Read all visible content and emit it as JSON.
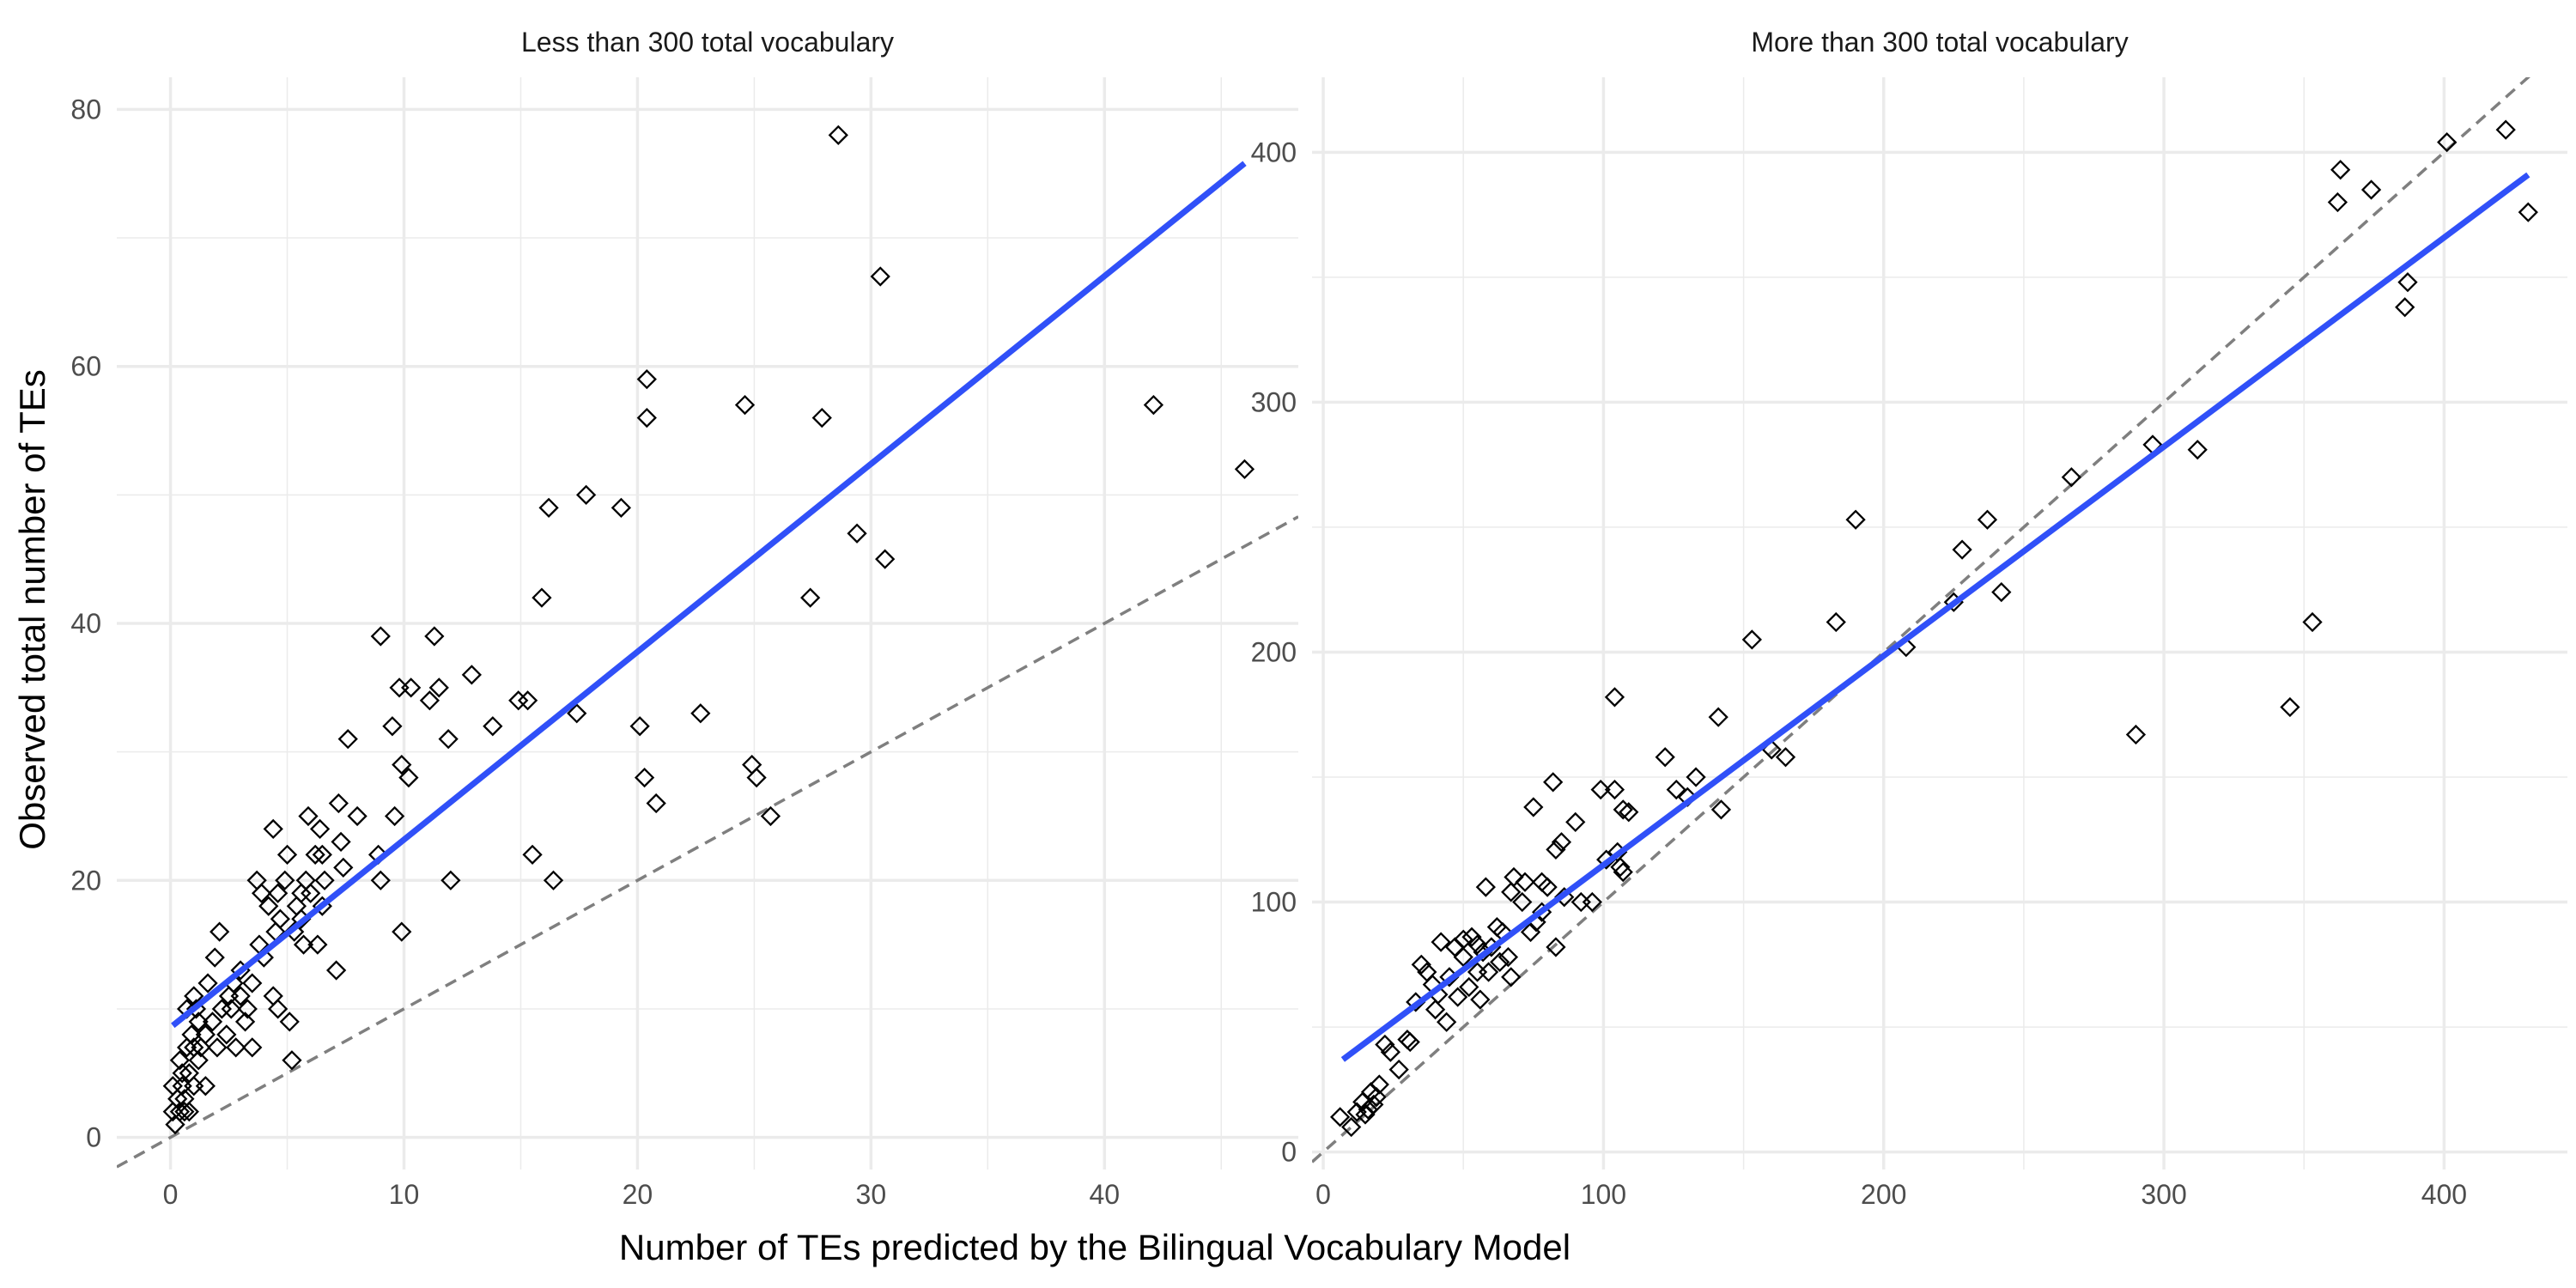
{
  "chart_data": {
    "type": "scatter",
    "xlabel": "Number of TEs predicted by the Bilingual Vocabulary Model",
    "ylabel": "Observed total number of TEs",
    "grid": true,
    "colors": {
      "points": "#000000",
      "fit_line": "#3050F8",
      "reference_line": "#7F7F7F",
      "grid": "#EBEBEB"
    },
    "panels": [
      {
        "title": "Less than 300 total vocabulary",
        "xlim": [
          -2.3,
          48.3
        ],
        "ylim": [
          -2.5,
          82.5
        ],
        "xticks": [
          0,
          10,
          20,
          30,
          40
        ],
        "yticks": [
          0,
          20,
          40,
          60,
          80
        ],
        "fit_line": {
          "x": [
            0.1,
            46
          ],
          "y": [
            8.7,
            75.8
          ]
        },
        "reference_line": {
          "x": [
            -2.3,
            48.3
          ],
          "y": [
            -2.3,
            48.3
          ]
        },
        "points": [
          [
            0.1,
            2
          ],
          [
            0.1,
            4
          ],
          [
            0.2,
            1
          ],
          [
            0.3,
            3
          ],
          [
            0.4,
            2
          ],
          [
            0.4,
            6
          ],
          [
            0.5,
            5
          ],
          [
            0.5,
            4
          ],
          [
            0.6,
            2
          ],
          [
            0.6,
            3
          ],
          [
            0.7,
            7
          ],
          [
            0.7,
            10
          ],
          [
            0.8,
            2
          ],
          [
            0.8,
            5
          ],
          [
            0.9,
            8
          ],
          [
            1,
            4
          ],
          [
            1,
            7
          ],
          [
            1,
            11
          ],
          [
            1.1,
            10
          ],
          [
            1.2,
            6
          ],
          [
            1.2,
            9
          ],
          [
            1.3,
            7
          ],
          [
            1.5,
            4
          ],
          [
            1.5,
            8
          ],
          [
            1.6,
            12
          ],
          [
            1.8,
            9
          ],
          [
            1.9,
            14
          ],
          [
            2,
            7
          ],
          [
            2.1,
            16
          ],
          [
            2.2,
            10
          ],
          [
            2.4,
            8
          ],
          [
            2.5,
            11
          ],
          [
            2.6,
            10
          ],
          [
            2.7,
            12
          ],
          [
            2.8,
            7
          ],
          [
            3,
            11
          ],
          [
            3,
            13
          ],
          [
            3.2,
            9
          ],
          [
            3.3,
            10
          ],
          [
            3.5,
            7
          ],
          [
            3.5,
            12
          ],
          [
            3.7,
            20
          ],
          [
            3.8,
            15
          ],
          [
            3.9,
            19
          ],
          [
            4,
            14
          ],
          [
            4.2,
            18
          ],
          [
            4.4,
            24
          ],
          [
            4.4,
            11
          ],
          [
            4.5,
            16
          ],
          [
            4.6,
            19
          ],
          [
            4.6,
            10
          ],
          [
            4.7,
            17
          ],
          [
            4.9,
            20
          ],
          [
            5,
            22
          ],
          [
            5.1,
            9
          ],
          [
            5.2,
            6
          ],
          [
            5.3,
            16
          ],
          [
            5.4,
            18
          ],
          [
            5.6,
            17
          ],
          [
            5.6,
            19
          ],
          [
            5.7,
            15
          ],
          [
            5.8,
            20
          ],
          [
            5.9,
            25
          ],
          [
            6,
            19
          ],
          [
            6.2,
            22
          ],
          [
            6.3,
            15
          ],
          [
            6.4,
            24
          ],
          [
            6.5,
            18
          ],
          [
            6.5,
            22
          ],
          [
            6.6,
            20
          ],
          [
            7.1,
            13
          ],
          [
            7.2,
            26
          ],
          [
            7.3,
            23
          ],
          [
            7.4,
            21
          ],
          [
            7.6,
            31
          ],
          [
            8,
            25
          ],
          [
            8.9,
            22
          ],
          [
            9,
            20
          ],
          [
            9,
            39
          ],
          [
            9.5,
            32
          ],
          [
            9.6,
            25
          ],
          [
            9.8,
            35
          ],
          [
            9.9,
            16
          ],
          [
            9.9,
            29
          ],
          [
            10.2,
            28
          ],
          [
            10.3,
            35
          ],
          [
            11.1,
            34
          ],
          [
            11.3,
            39
          ],
          [
            11.5,
            35
          ],
          [
            11.9,
            31
          ],
          [
            12,
            20
          ],
          [
            12.9,
            36
          ],
          [
            13.8,
            32
          ],
          [
            14.9,
            34
          ],
          [
            15.3,
            34
          ],
          [
            15.5,
            22
          ],
          [
            15.9,
            42
          ],
          [
            16.2,
            49
          ],
          [
            16.4,
            20
          ],
          [
            17.4,
            33
          ],
          [
            17.8,
            50
          ],
          [
            19.3,
            49
          ],
          [
            20.1,
            32
          ],
          [
            20.3,
            28
          ],
          [
            20.4,
            56
          ],
          [
            20.4,
            59
          ],
          [
            20.8,
            26
          ],
          [
            22.7,
            33
          ],
          [
            24.6,
            57
          ],
          [
            24.9,
            29
          ],
          [
            25.1,
            28
          ],
          [
            25.7,
            25
          ],
          [
            27.4,
            42
          ],
          [
            27.9,
            56
          ],
          [
            28.6,
            78
          ],
          [
            29.4,
            47
          ],
          [
            30.4,
            67
          ],
          [
            30.6,
            45
          ],
          [
            42.1,
            57
          ],
          [
            46,
            52
          ]
        ]
      },
      {
        "title": "More than 300 total vocabulary",
        "xlim": [
          -4,
          444
        ],
        "ylim": [
          -7,
          430
        ],
        "xticks": [
          0,
          100,
          200,
          300,
          400
        ],
        "yticks": [
          0,
          100,
          200,
          300,
          400
        ],
        "fit_line": {
          "x": [
            7,
            430
          ],
          "y": [
            37,
            391
          ]
        },
        "reference_line": {
          "x": [
            -4,
            444
          ],
          "y": [
            -4,
            444
          ]
        },
        "points": [
          [
            6,
            14
          ],
          [
            10,
            10
          ],
          [
            12,
            16
          ],
          [
            14,
            20
          ],
          [
            15,
            15
          ],
          [
            16,
            17
          ],
          [
            17,
            24
          ],
          [
            18,
            19
          ],
          [
            19,
            22
          ],
          [
            20,
            27
          ],
          [
            22,
            43
          ],
          [
            24,
            40
          ],
          [
            27,
            33
          ],
          [
            30,
            45
          ],
          [
            31,
            44
          ],
          [
            33,
            60
          ],
          [
            35,
            75
          ],
          [
            37,
            72
          ],
          [
            39,
            67
          ],
          [
            40,
            57
          ],
          [
            41,
            63
          ],
          [
            42,
            84
          ],
          [
            44,
            52
          ],
          [
            45,
            70
          ],
          [
            47,
            82
          ],
          [
            48,
            62
          ],
          [
            50,
            78
          ],
          [
            50,
            85
          ],
          [
            52,
            66
          ],
          [
            53,
            86
          ],
          [
            55,
            72
          ],
          [
            55,
            83
          ],
          [
            56,
            61
          ],
          [
            57,
            80
          ],
          [
            58,
            106
          ],
          [
            59,
            72
          ],
          [
            60,
            82
          ],
          [
            62,
            90
          ],
          [
            63,
            76
          ],
          [
            64,
            88
          ],
          [
            66,
            78
          ],
          [
            67,
            70
          ],
          [
            67,
            104
          ],
          [
            68,
            110
          ],
          [
            71,
            100
          ],
          [
            72,
            108
          ],
          [
            74,
            88
          ],
          [
            75,
            138
          ],
          [
            76,
            92
          ],
          [
            78,
            108
          ],
          [
            78,
            96
          ],
          [
            80,
            106
          ],
          [
            82,
            148
          ],
          [
            83,
            82
          ],
          [
            83,
            121
          ],
          [
            85,
            124
          ],
          [
            86,
            102
          ],
          [
            90,
            132
          ],
          [
            92,
            100
          ],
          [
            96,
            100
          ],
          [
            99,
            145
          ],
          [
            101,
            117
          ],
          [
            104,
            145
          ],
          [
            104,
            182
          ],
          [
            105,
            120
          ],
          [
            106,
            114
          ],
          [
            107,
            112
          ],
          [
            107,
            137
          ],
          [
            109,
            136
          ],
          [
            122,
            158
          ],
          [
            126,
            145
          ],
          [
            130,
            142
          ],
          [
            133,
            150
          ],
          [
            141,
            174
          ],
          [
            142,
            137
          ],
          [
            153,
            205
          ],
          [
            160,
            161
          ],
          [
            165,
            158
          ],
          [
            183,
            212
          ],
          [
            190,
            253
          ],
          [
            208,
            202
          ],
          [
            225,
            220
          ],
          [
            228,
            241
          ],
          [
            237,
            253
          ],
          [
            242,
            224
          ],
          [
            267,
            270
          ],
          [
            290,
            167
          ],
          [
            296,
            283
          ],
          [
            312,
            281
          ],
          [
            345,
            178
          ],
          [
            353,
            212
          ],
          [
            362,
            380
          ],
          [
            363,
            393
          ],
          [
            374,
            385
          ],
          [
            386,
            338
          ],
          [
            387,
            348
          ],
          [
            401,
            404
          ],
          [
            422,
            409
          ],
          [
            430,
            376
          ]
        ]
      }
    ]
  }
}
